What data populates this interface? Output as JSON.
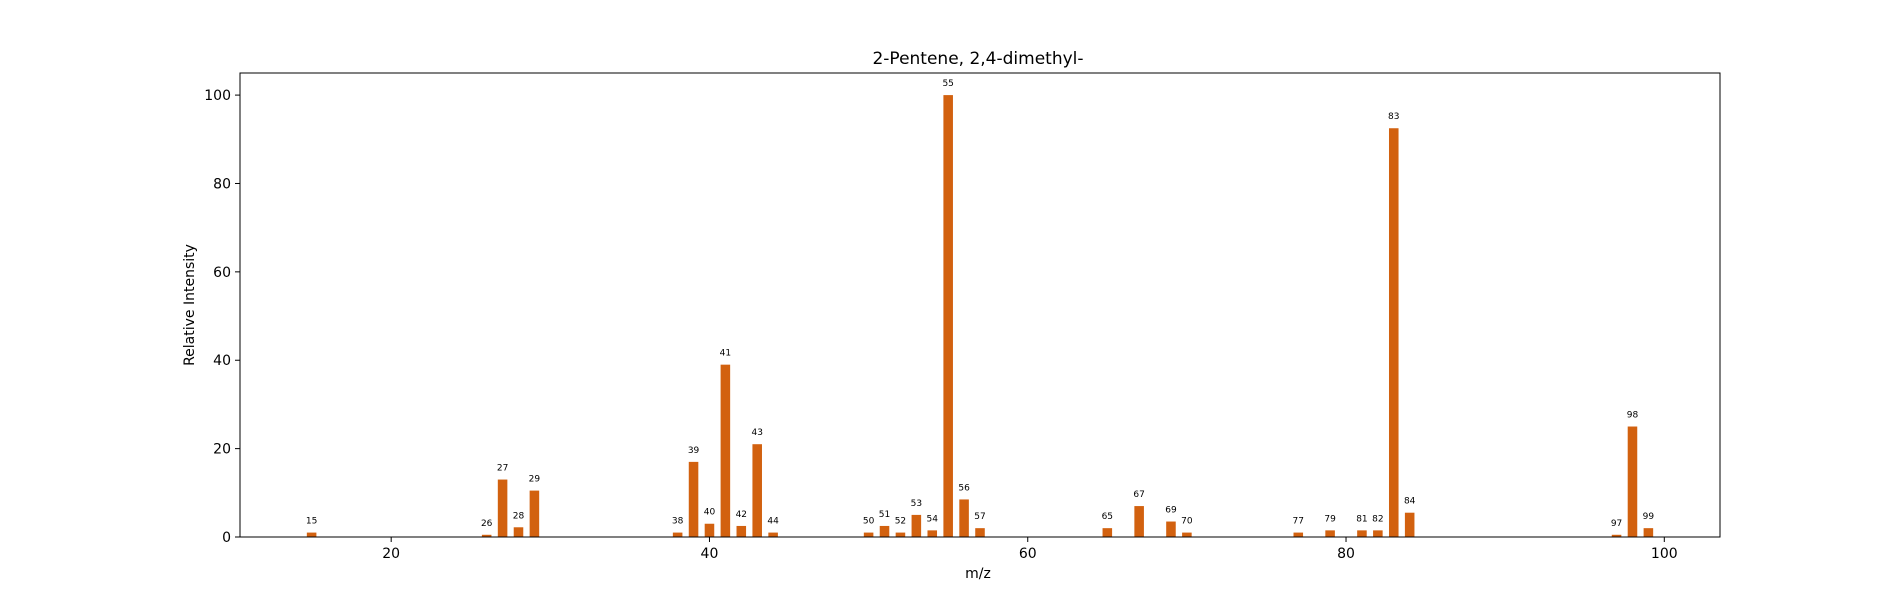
{
  "chart_data": {
    "type": "bar",
    "title": "2-Pentene, 2,4-dimethyl-",
    "xlabel": "m/z",
    "ylabel": "Relative Intensity",
    "xlim": [
      10.5,
      103.5
    ],
    "ylim": [
      0,
      105
    ],
    "xticks": [
      20,
      40,
      60,
      80,
      100
    ],
    "yticks": [
      0,
      20,
      40,
      60,
      80,
      100
    ],
    "bar_color": "#d2610f",
    "grid": false,
    "points": [
      {
        "mz": 15,
        "intensity": 1.0
      },
      {
        "mz": 26,
        "intensity": 0.5
      },
      {
        "mz": 27,
        "intensity": 13.0
      },
      {
        "mz": 28,
        "intensity": 2.2
      },
      {
        "mz": 29,
        "intensity": 10.5
      },
      {
        "mz": 38,
        "intensity": 1.0
      },
      {
        "mz": 39,
        "intensity": 17.0
      },
      {
        "mz": 40,
        "intensity": 3.0
      },
      {
        "mz": 41,
        "intensity": 39.0
      },
      {
        "mz": 42,
        "intensity": 2.5
      },
      {
        "mz": 43,
        "intensity": 21.0
      },
      {
        "mz": 44,
        "intensity": 1.0
      },
      {
        "mz": 50,
        "intensity": 1.0
      },
      {
        "mz": 51,
        "intensity": 2.5
      },
      {
        "mz": 52,
        "intensity": 1.0
      },
      {
        "mz": 53,
        "intensity": 5.0
      },
      {
        "mz": 54,
        "intensity": 1.5
      },
      {
        "mz": 55,
        "intensity": 100.0
      },
      {
        "mz": 56,
        "intensity": 8.5
      },
      {
        "mz": 57,
        "intensity": 2.0
      },
      {
        "mz": 65,
        "intensity": 2.0
      },
      {
        "mz": 67,
        "intensity": 7.0
      },
      {
        "mz": 69,
        "intensity": 3.5
      },
      {
        "mz": 70,
        "intensity": 1.0
      },
      {
        "mz": 77,
        "intensity": 1.0
      },
      {
        "mz": 79,
        "intensity": 1.5
      },
      {
        "mz": 81,
        "intensity": 1.5
      },
      {
        "mz": 82,
        "intensity": 1.5
      },
      {
        "mz": 83,
        "intensity": 92.5
      },
      {
        "mz": 84,
        "intensity": 5.5
      },
      {
        "mz": 97,
        "intensity": 0.5
      },
      {
        "mz": 98,
        "intensity": 25.0
      },
      {
        "mz": 99,
        "intensity": 2.0
      }
    ]
  }
}
